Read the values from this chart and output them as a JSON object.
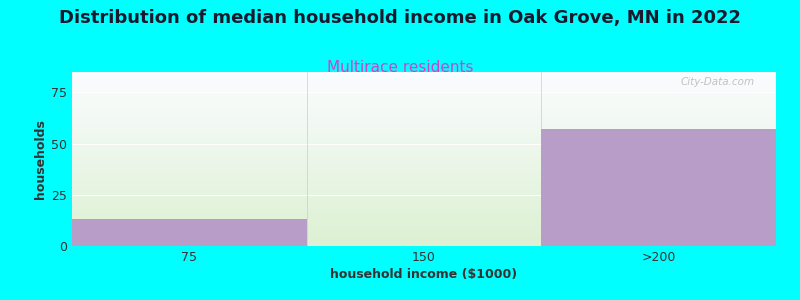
{
  "title": "Distribution of median household income in Oak Grove, MN in 2022",
  "subtitle": "Multirace residents",
  "subtitle_color": "#cc44cc",
  "xlabel": "household income ($1000)",
  "ylabel": "households",
  "bg_color": "#00ffff",
  "plot_bg_green": [
    220,
    240,
    210
  ],
  "plot_bg_white": [
    250,
    252,
    255
  ],
  "bar_color": "#b89dc8",
  "categories": [
    "75",
    "150",
    ">200"
  ],
  "values": [
    13,
    0,
    57
  ],
  "ylim": [
    0,
    85
  ],
  "yticks": [
    0,
    25,
    50,
    75
  ],
  "bar_width": 1.0,
  "watermark": "City-Data.com",
  "title_fontsize": 13,
  "subtitle_fontsize": 11,
  "axis_label_fontsize": 9,
  "tick_fontsize": 9
}
